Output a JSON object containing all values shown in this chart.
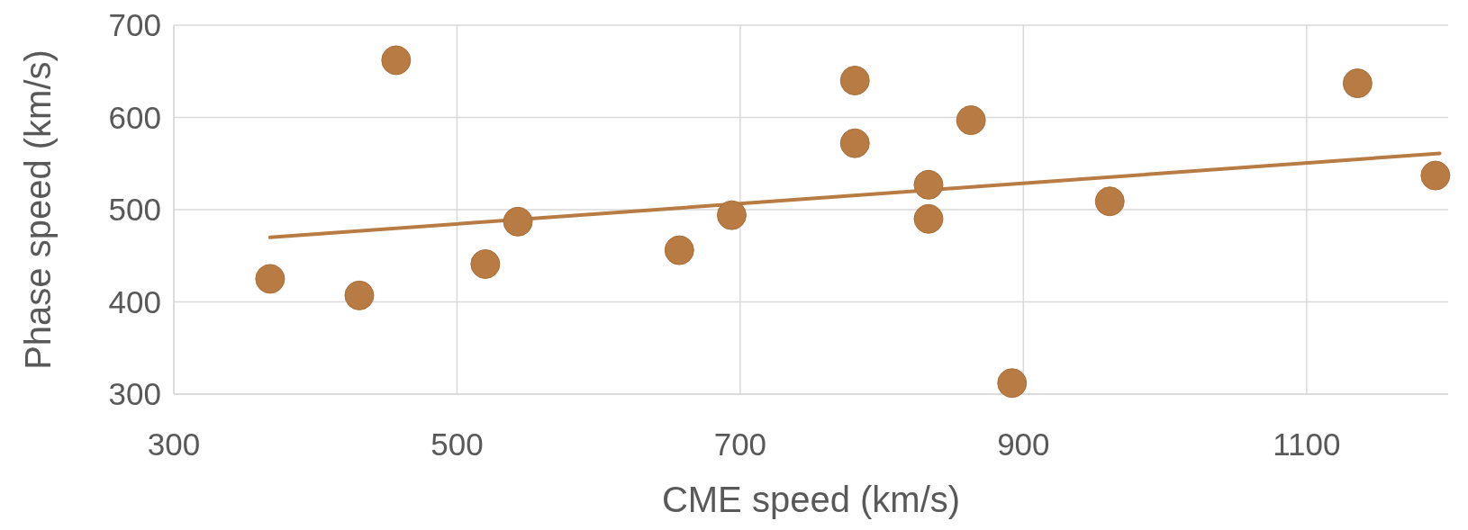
{
  "chart_data": {
    "type": "scatter",
    "xlabel": "CME speed (km/s)",
    "ylabel": "Phase speed (km/s)",
    "xlim": [
      300,
      1200
    ],
    "xticks": [
      300,
      500,
      700,
      900,
      1100
    ],
    "ylim": [
      300,
      700
    ],
    "yticks": [
      300,
      400,
      500,
      600,
      700
    ],
    "grid": true,
    "marker": "circle",
    "series": [
      {
        "color": "#b87b43",
        "x": [
          368,
          431,
          457,
          520,
          543,
          657,
          694,
          781,
          781,
          833,
          833,
          863,
          892,
          961,
          1136,
          1191
        ],
        "values": [
          425,
          407,
          662,
          441,
          487,
          456,
          494,
          640,
          572,
          527,
          490,
          597,
          312,
          509,
          637,
          537
        ]
      },
      {
        "type": "line",
        "color": "#b87b43",
        "x": [
          368,
          1194
        ],
        "values": [
          470,
          561
        ],
        "marker": "none"
      }
    ]
  }
}
